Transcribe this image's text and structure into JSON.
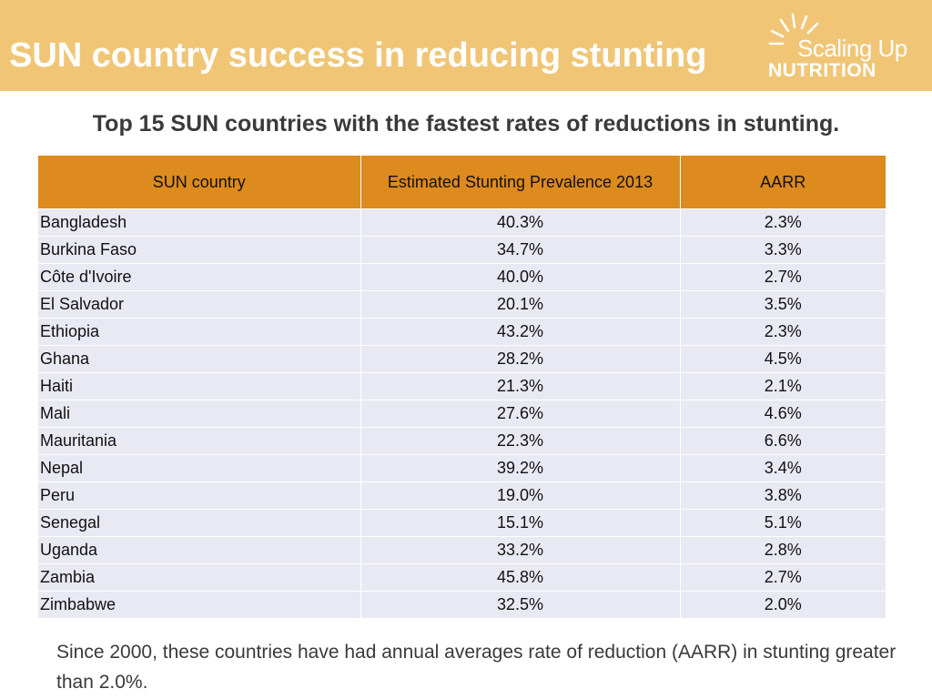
{
  "header": {
    "title": "SUN country success in reducing stunting",
    "logo": {
      "line1": "Scaling Up",
      "line2": "NUTRITION"
    }
  },
  "subtitle": "Top 15 SUN countries with the fastest rates of reductions in stunting.",
  "table": {
    "columns": [
      "SUN country",
      "Estimated Stunting Prevalence 2013",
      "AARR"
    ],
    "rows": [
      [
        "Bangladesh",
        "40.3%",
        "2.3%"
      ],
      [
        "Burkina Faso",
        "34.7%",
        "3.3%"
      ],
      [
        "Côte d'Ivoire",
        "40.0%",
        "2.7%"
      ],
      [
        "El Salvador",
        "20.1%",
        "3.5%"
      ],
      [
        "Ethiopia",
        "43.2%",
        "2.3%"
      ],
      [
        "Ghana",
        "28.2%",
        "4.5%"
      ],
      [
        "Haiti",
        "21.3%",
        "2.1%"
      ],
      [
        "Mali",
        "27.6%",
        "4.6%"
      ],
      [
        "Mauritania",
        "22.3%",
        "6.6%"
      ],
      [
        "Nepal",
        "39.2%",
        "3.4%"
      ],
      [
        "Peru",
        "19.0%",
        "3.8%"
      ],
      [
        "Senegal",
        "15.1%",
        "5.1%"
      ],
      [
        "Uganda",
        "33.2%",
        "2.8%"
      ],
      [
        "Zambia",
        "45.8%",
        "2.7%"
      ],
      [
        "Zimbabwe",
        "32.5%",
        "2.0%"
      ]
    ]
  },
  "footnote": "Since 2000, these countries have had annual averages rate of reduction (AARR) in stunting  greater than 2.0%.",
  "colors": {
    "header_band": "#f0c676",
    "table_header": "#dd8a1f",
    "row_background": "#e9e9f4"
  }
}
